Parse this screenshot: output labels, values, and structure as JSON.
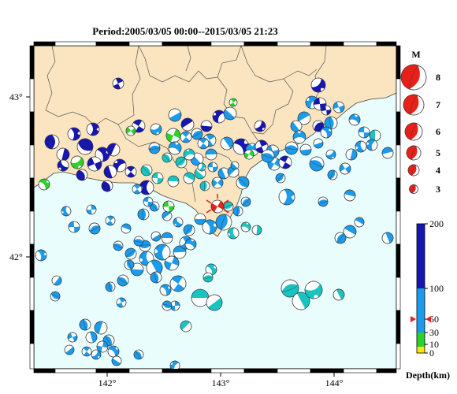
{
  "title": "Period:2005/03/05 00:00--2015/03/05 21:23",
  "colors": {
    "land": "#fbe5c0",
    "sea": "#e9fdfd",
    "shallow": "#ffe600",
    "mid_shallow": "#2ad22a",
    "intermediate": "#1a9bec",
    "deep": "#1717b0",
    "highlight": "#e8201a",
    "teal": "#19c4c0"
  },
  "map": {
    "lon_ticks": [
      "142°",
      "143°",
      "144°"
    ],
    "lat_ticks": [
      "43°",
      "42°"
    ]
  },
  "magnitude_legend": {
    "heading": "M",
    "items": [
      "8",
      "7",
      "6",
      "5",
      "4",
      "3"
    ]
  },
  "depth_legend": {
    "ticks": [
      "200",
      "100",
      "50",
      "30",
      "10",
      "0"
    ],
    "unit_label": "Depth(km)",
    "marker_value": 50
  }
}
